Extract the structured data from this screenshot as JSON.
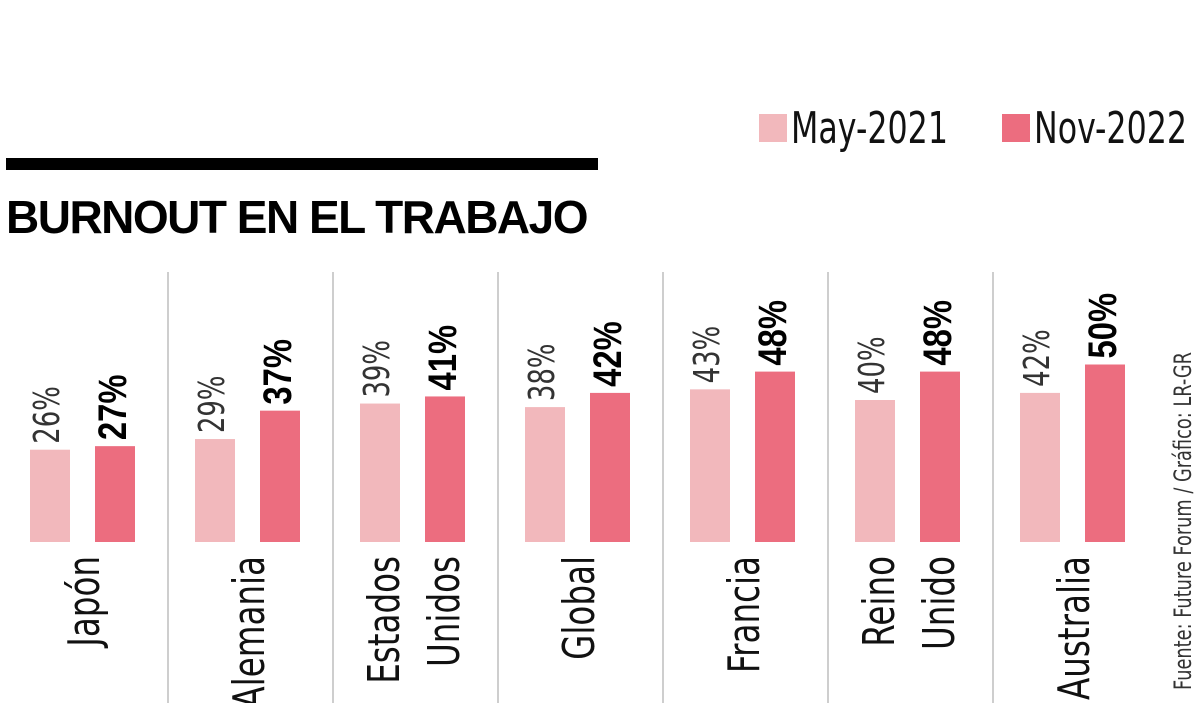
{
  "title": "BURNOUT EN EL TRABAJO",
  "source": "Fuente: Future Forum / Gráfico: LR-GR",
  "colors": {
    "may_2021": "#f2b8bc",
    "nov_2022": "#ec6d7f",
    "rule": "#000000",
    "divider": "#bdbdbd"
  },
  "chart_data": {
    "type": "bar",
    "title": "BURNOUT EN EL TRABAJO",
    "xlabel": "",
    "ylabel": "",
    "legend": "top-right",
    "grid": false,
    "ylim": [
      0,
      55
    ],
    "categories": [
      [
        "Japón"
      ],
      [
        "Alemania"
      ],
      [
        "Estados",
        "Unidos"
      ],
      [
        "Global"
      ],
      [
        "Francia"
      ],
      [
        "Reino",
        "Unido"
      ],
      [
        "Australia"
      ]
    ],
    "series": [
      {
        "name": "May-2021",
        "values": [
          26,
          29,
          39,
          38,
          43,
          40,
          42
        ],
        "labels": [
          "26%",
          "29%",
          "39%",
          "38%",
          "43%",
          "40%",
          "42%"
        ]
      },
      {
        "name": "Nov-2022",
        "values": [
          27,
          37,
          41,
          42,
          48,
          48,
          50
        ],
        "labels": [
          "27%",
          "37%",
          "41%",
          "42%",
          "48%",
          "48%",
          "50%"
        ]
      }
    ]
  }
}
